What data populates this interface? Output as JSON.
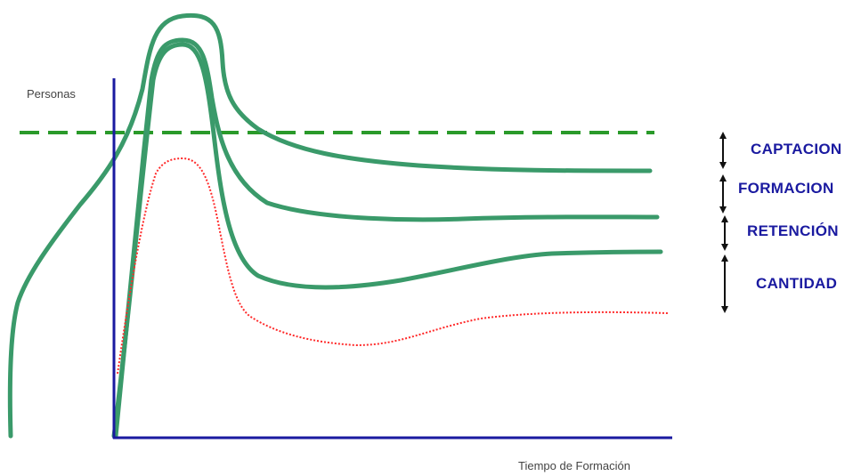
{
  "axes": {
    "y_label": "Personas",
    "x_label": "Tiempo de Formación"
  },
  "stages": [
    {
      "label": "CAPTACION"
    },
    {
      "label": "FORMACION"
    },
    {
      "label": "RETENCIÓN"
    },
    {
      "label": "CANTIDAD"
    }
  ],
  "colors": {
    "axis": "#1a1aa0",
    "curve": "#3a9a6a",
    "dashed_line": "#2a9a2a",
    "dotted_curve": "#ff2a2a",
    "stage_label": "#1a1aa0",
    "bracket": "#111111"
  }
}
